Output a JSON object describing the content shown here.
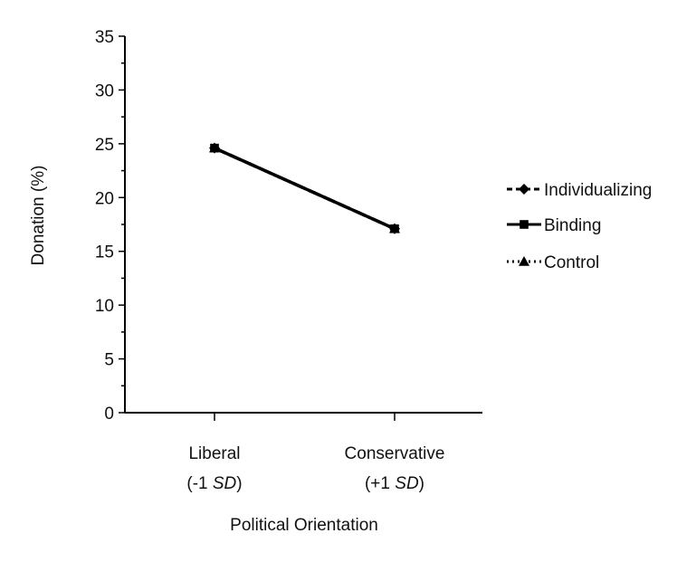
{
  "chart_data": {
    "type": "line",
    "xlabel": "Political Orientation",
    "ylabel": "Donation (%)",
    "ylim": [
      0,
      35
    ],
    "yticks": [
      0,
      5,
      10,
      15,
      20,
      25,
      30,
      35
    ],
    "grid": false,
    "legend_position": "right",
    "categories": [
      {
        "line1": "Liberal",
        "line2_prefix": "(-1 ",
        "line2_italic": "SD",
        "line2_suffix": ")"
      },
      {
        "line1": "Conservative",
        "line2_prefix": "(+1 ",
        "line2_italic": "SD",
        "line2_suffix": ")"
      }
    ],
    "series": [
      {
        "name": "Individualizing",
        "values": [
          24.6,
          17.1
        ],
        "marker": "diamond",
        "line_style": "dashed",
        "color": "#000000"
      },
      {
        "name": "Binding",
        "values": [
          24.6,
          17.1
        ],
        "marker": "square",
        "line_style": "solid",
        "color": "#000000"
      },
      {
        "name": "Control",
        "values": [
          24.6,
          17.1
        ],
        "marker": "triangle",
        "line_style": "dotted",
        "color": "#000000"
      }
    ]
  }
}
